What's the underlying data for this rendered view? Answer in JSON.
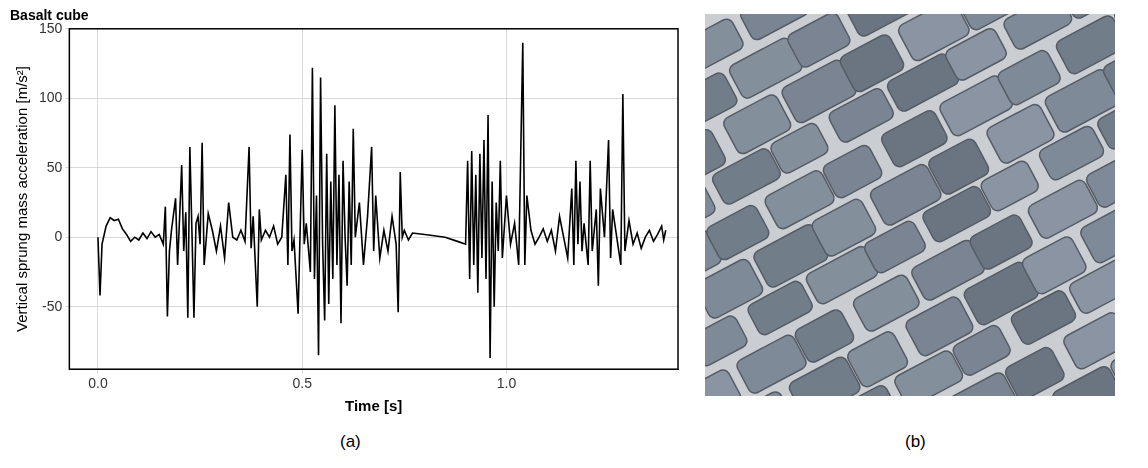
{
  "chart_data": {
    "type": "line",
    "title": "Basalt cube",
    "x_label": "Time [s]",
    "y_label": "Vertical sprung mass acceleration [m/s²]",
    "color": "#000000",
    "grid": true,
    "xlim": [
      -0.07,
      1.42
    ],
    "xticks": [
      {
        "value": 0,
        "label": "0.0"
      },
      {
        "value": 0.5,
        "label": "0.5"
      },
      {
        "value": 1,
        "label": "1.0"
      }
    ],
    "ylim": [
      -95,
      150
    ],
    "yticks": [
      -50,
      0,
      50,
      100,
      150
    ],
    "x": [
      0,
      0.005,
      0.01,
      0.02,
      0.03,
      0.04,
      0.05,
      0.06,
      0.07,
      0.08,
      0.09,
      0.1,
      0.11,
      0.12,
      0.13,
      0.14,
      0.15,
      0.16,
      0.165,
      0.17,
      0.175,
      0.18,
      0.19,
      0.195,
      0.2,
      0.205,
      0.21,
      0.215,
      0.22,
      0.225,
      0.23,
      0.235,
      0.24,
      0.245,
      0.25,
      0.255,
      0.26,
      0.27,
      0.28,
      0.29,
      0.3,
      0.31,
      0.32,
      0.33,
      0.34,
      0.35,
      0.36,
      0.37,
      0.375,
      0.38,
      0.39,
      0.395,
      0.4,
      0.41,
      0.42,
      0.43,
      0.44,
      0.45,
      0.46,
      0.465,
      0.47,
      0.475,
      0.48,
      0.49,
      0.495,
      0.5,
      0.505,
      0.51,
      0.52,
      0.525,
      0.53,
      0.535,
      0.54,
      0.545,
      0.55,
      0.555,
      0.56,
      0.565,
      0.57,
      0.575,
      0.58,
      0.585,
      0.59,
      0.595,
      0.6,
      0.605,
      0.61,
      0.615,
      0.62,
      0.625,
      0.63,
      0.64,
      0.65,
      0.66,
      0.67,
      0.675,
      0.68,
      0.69,
      0.7,
      0.71,
      0.72,
      0.73,
      0.735,
      0.74,
      0.745,
      0.75,
      0.76,
      0.77,
      0.8,
      0.85,
      0.88,
      0.9,
      0.905,
      0.91,
      0.915,
      0.92,
      0.925,
      0.93,
      0.935,
      0.94,
      0.945,
      0.95,
      0.955,
      0.96,
      0.965,
      0.97,
      0.975,
      0.98,
      0.985,
      0.99,
      1.0,
      1.01,
      1.02,
      1.03,
      1.035,
      1.04,
      1.045,
      1.05,
      1.06,
      1.07,
      1.08,
      1.09,
      1.1,
      1.11,
      1.12,
      1.13,
      1.14,
      1.15,
      1.16,
      1.165,
      1.17,
      1.175,
      1.18,
      1.185,
      1.19,
      1.2,
      1.205,
      1.21,
      1.22,
      1.225,
      1.23,
      1.24,
      1.25,
      1.255,
      1.26,
      1.27,
      1.28,
      1.285,
      1.29,
      1.3,
      1.31,
      1.32,
      1.33,
      1.34,
      1.35,
      1.36,
      1.37,
      1.38,
      1.385,
      1.39
    ],
    "values": [
      0,
      -42,
      -5,
      8,
      14,
      12,
      13,
      6,
      2,
      -3,
      0,
      -2,
      3,
      -1,
      4,
      0,
      2,
      -5,
      22,
      -57,
      -10,
      5,
      28,
      -20,
      15,
      52,
      -10,
      18,
      -58,
      65,
      5,
      -58,
      10,
      15,
      -5,
      68,
      -20,
      17,
      5,
      -10,
      8,
      -15,
      25,
      0,
      -2,
      5,
      -3,
      65,
      -8,
      15,
      -50,
      20,
      -2,
      5,
      0,
      8,
      -5,
      0,
      45,
      -20,
      74,
      -10,
      -2,
      -55,
      5,
      63,
      -5,
      10,
      -25,
      122,
      -30,
      30,
      -85,
      115,
      -5,
      -60,
      60,
      -48,
      40,
      -30,
      95,
      -20,
      45,
      -62,
      55,
      0,
      -35,
      40,
      -20,
      78,
      0,
      25,
      -20,
      15,
      65,
      -10,
      30,
      -15,
      5,
      -10,
      15,
      -5,
      -54,
      47,
      0,
      5,
      -2,
      3,
      2,
      0,
      -3,
      -5,
      55,
      -30,
      62,
      -20,
      45,
      -40,
      60,
      -15,
      70,
      -30,
      88,
      -87,
      40,
      -50,
      25,
      -10,
      55,
      -15,
      30,
      -5,
      10,
      -20,
      60,
      140,
      -20,
      30,
      5,
      -5,
      0,
      6,
      -3,
      5,
      -10,
      15,
      0,
      -15,
      35,
      -20,
      55,
      -5,
      40,
      -10,
      10,
      -20,
      55,
      -10,
      20,
      -35,
      35,
      0,
      70,
      -15,
      20,
      0,
      -20,
      103,
      -10,
      12,
      -5,
      3,
      -8,
      0,
      5,
      -3,
      2,
      8,
      -2,
      5
    ]
  },
  "panel_labels": [
    "(a)",
    "(b)"
  ]
}
